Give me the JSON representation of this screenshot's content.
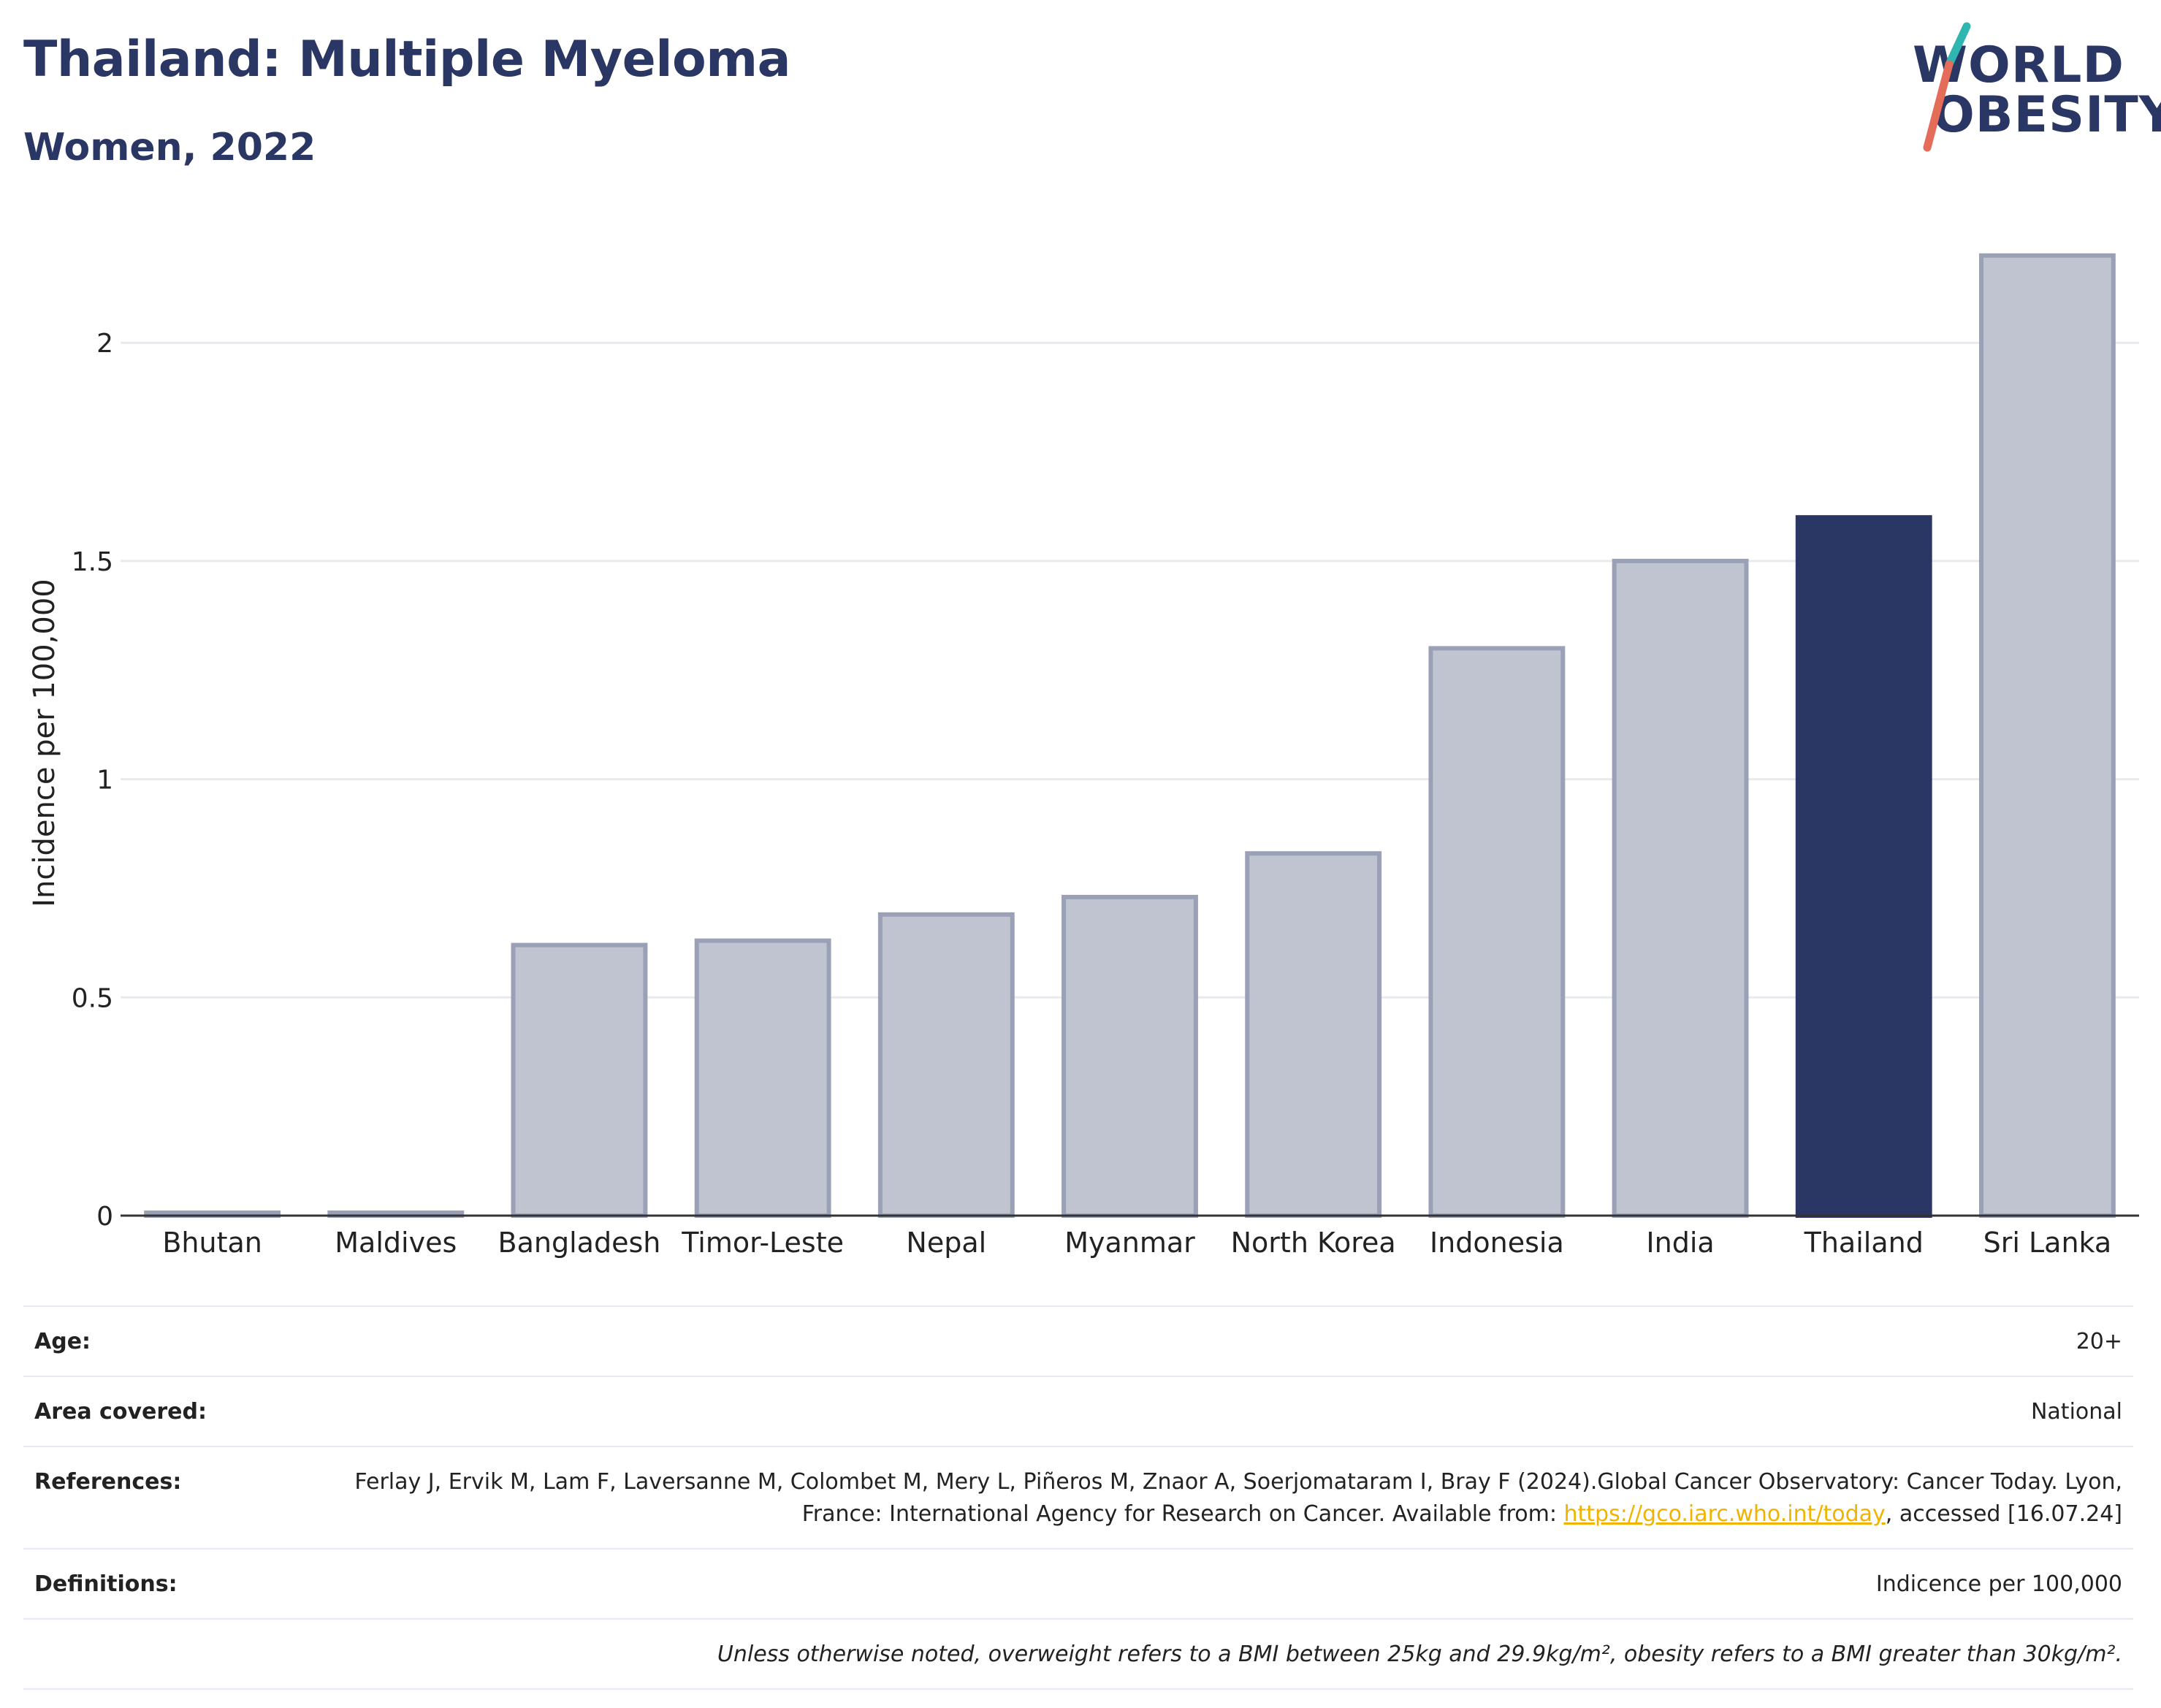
{
  "header": {
    "title": "Thailand: Multiple Myeloma",
    "subtitle": "Women, 2022"
  },
  "logo": {
    "line1": "WORLD",
    "line2": "OBESITY"
  },
  "chart_data": {
    "type": "bar",
    "categories": [
      "Bhutan",
      "Maldives",
      "Bangladesh",
      "Timor-Leste",
      "Nepal",
      "Myanmar",
      "North Korea",
      "Indonesia",
      "India",
      "Thailand",
      "Sri Lanka"
    ],
    "values": [
      0.0,
      0.0,
      0.62,
      0.63,
      0.69,
      0.73,
      0.83,
      1.3,
      1.5,
      1.6,
      2.2
    ],
    "highlight": "Thailand",
    "ylabel": "Incidence per 100,000",
    "xlabel": "",
    "ylim": [
      0,
      2.3
    ],
    "yticks": [
      0,
      0.5,
      1,
      1.5,
      2
    ],
    "ytick_labels": [
      "0",
      "0.5",
      "1",
      "1.5",
      "2"
    ],
    "grid": true,
    "colors": {
      "bar": "#c0c4d0",
      "bar_edge": "#9aa0b6",
      "highlight": "#2a3663"
    }
  },
  "info": {
    "age_label": "Age:",
    "age_value": "20+",
    "area_label": "Area covered:",
    "area_value": "National",
    "refs_label": "References:",
    "refs_text_1": "Ferlay J, Ervik M, Lam F, Laversanne M, Colombet M, Mery L, Piñeros M, Znaor A, Soerjomataram I, Bray F (2024).Global Cancer Observatory: Cancer Today. Lyon, France: International Agency for Research on Cancer. Available from: ",
    "refs_link": "https://gco.iarc.who.int/today",
    "refs_text_2": ", accessed [16.07.24]",
    "defs_label": "Definitions:",
    "defs_value": "Indicence per 100,000",
    "note": "Unless otherwise noted, overweight refers to a BMI between 25kg and 29.9kg/m², obesity refers to a BMI greater than 30kg/m²."
  }
}
